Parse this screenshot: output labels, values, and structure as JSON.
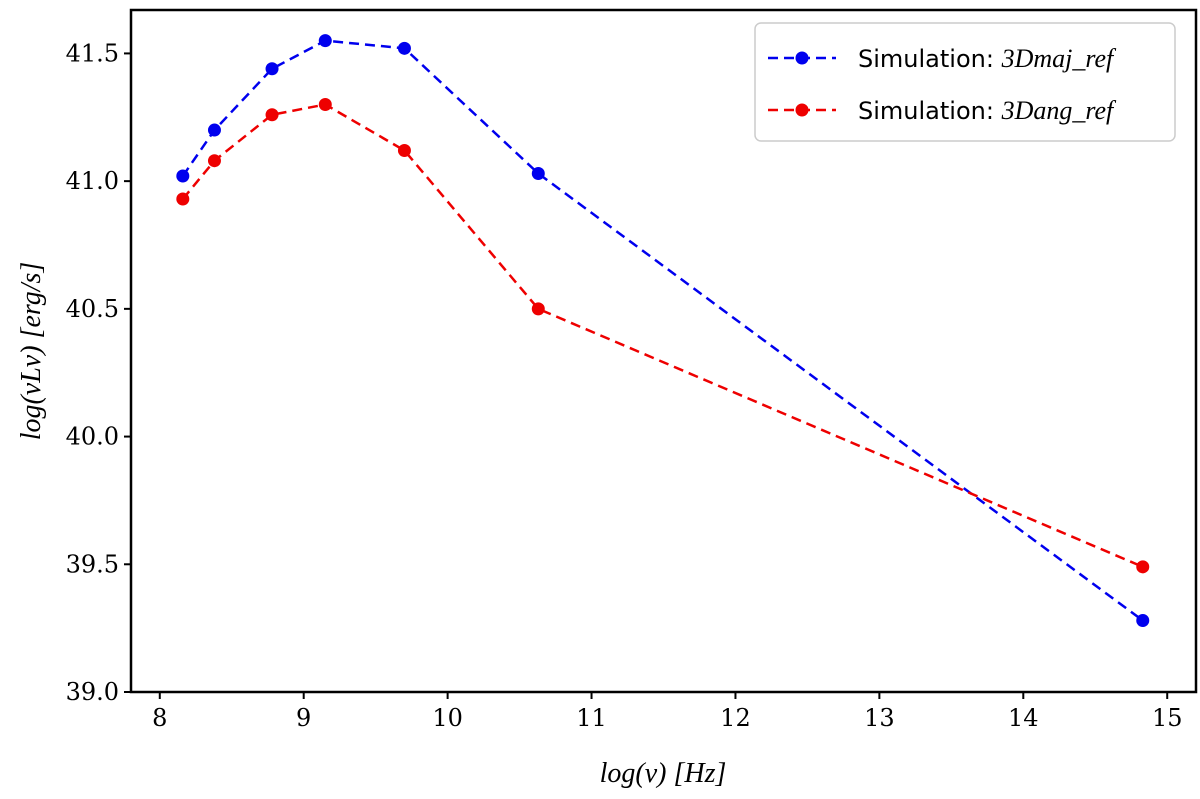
{
  "chart_data": {
    "type": "line",
    "title": "",
    "xlabel": "log(ν) [Hz]",
    "ylabel": "log(νLν) [erg/s]",
    "xlim": [
      7.8,
      15.2
    ],
    "ylim": [
      39.0,
      41.67
    ],
    "xticks": [
      8,
      9,
      10,
      11,
      12,
      13,
      14,
      15
    ],
    "yticks": [
      39.0,
      39.5,
      40.0,
      40.5,
      41.0,
      41.5
    ],
    "xtick_labels": [
      "8",
      "9",
      "10",
      "11",
      "12",
      "13",
      "14",
      "15"
    ],
    "ytick_labels": [
      "39.0",
      "39.5",
      "40.0",
      "40.5",
      "41.0",
      "41.5"
    ],
    "legend_position": "top-right",
    "grid": false,
    "series": [
      {
        "name": "Simulation: 3Dmaj_ref",
        "label_prefix": "Simulation: ",
        "label_math": "3Dmaj_ref",
        "color": "#0000ee",
        "linestyle": "dashed",
        "marker": "circle",
        "x": [
          8.16,
          8.38,
          8.78,
          9.15,
          9.7,
          10.63,
          14.83
        ],
        "y": [
          41.02,
          41.2,
          41.44,
          41.55,
          41.52,
          41.03,
          39.28
        ]
      },
      {
        "name": "Simulation: 3Dang_ref",
        "label_prefix": "Simulation: ",
        "label_math": "3Dang_ref",
        "color": "#ee0000",
        "linestyle": "dashed",
        "marker": "circle",
        "x": [
          8.16,
          8.38,
          8.78,
          9.15,
          9.7,
          10.63,
          14.83
        ],
        "y": [
          40.93,
          41.08,
          41.26,
          41.3,
          41.12,
          40.5,
          39.49
        ]
      }
    ]
  }
}
